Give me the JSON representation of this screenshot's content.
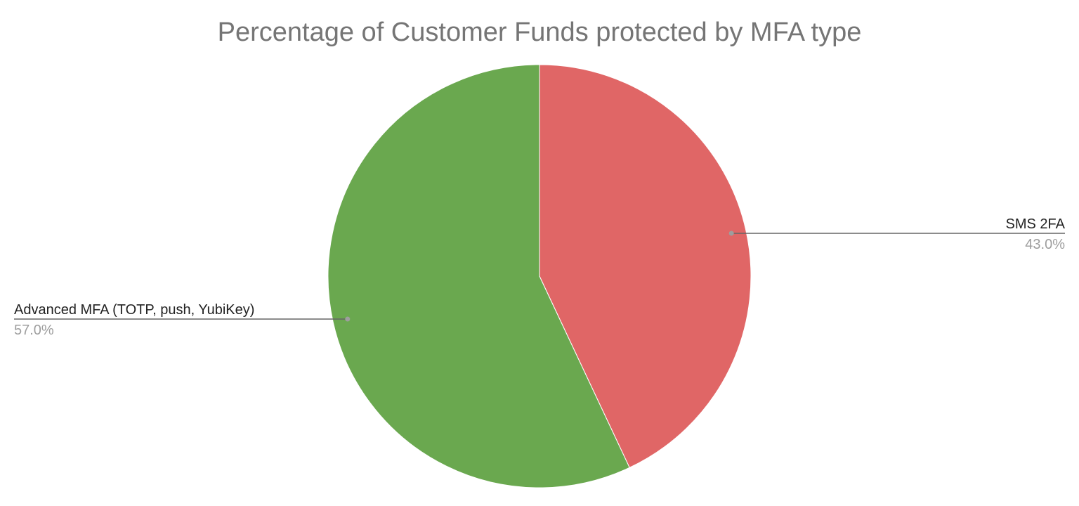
{
  "chart_data": {
    "type": "pie",
    "title": "Percentage of Customer Funds protected by MFA type",
    "start_angle_deg": 0,
    "direction": "clockwise",
    "slices": [
      {
        "label": "SMS 2FA",
        "value": 43.0,
        "display": "43.0%",
        "color": "#e06666"
      },
      {
        "label": "Advanced MFA (TOTP, push, YubiKey)",
        "value": 57.0,
        "display": "57.0%",
        "color": "#6aa84f"
      }
    ],
    "legend": "none",
    "labels": "outside-with-leader-lines"
  }
}
